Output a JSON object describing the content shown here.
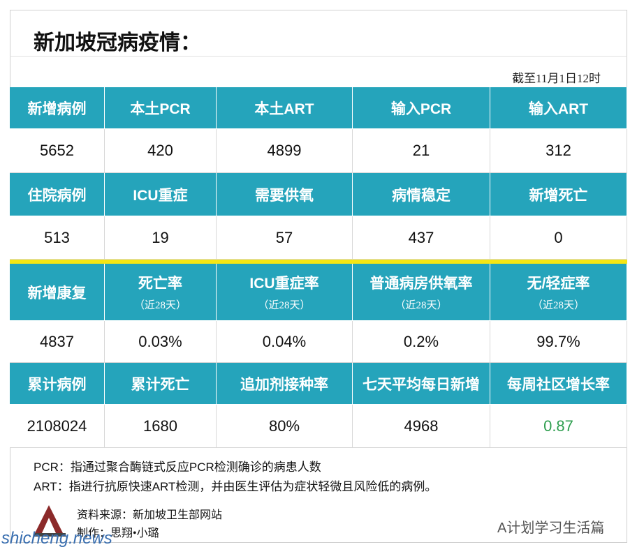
{
  "header": {
    "title": "新加坡冠病疫情：",
    "date": "截至11月1日12时"
  },
  "table": {
    "sections": [
      {
        "headers": [
          {
            "label": "新增病例"
          },
          {
            "label": "本土PCR"
          },
          {
            "label": "本土ART"
          },
          {
            "label": "输入PCR"
          },
          {
            "label": "输入ART"
          }
        ],
        "values": [
          5652,
          420,
          4899,
          21,
          312
        ]
      },
      {
        "headers": [
          {
            "label": "住院病例"
          },
          {
            "label": "ICU重症"
          },
          {
            "label": "需要供氧"
          },
          {
            "label": "病情稳定"
          },
          {
            "label": "新增死亡"
          }
        ],
        "values": [
          513,
          19,
          57,
          437,
          0
        ]
      },
      {
        "headers": [
          {
            "label": "新增康复"
          },
          {
            "label": "死亡率",
            "note": "（近28天）"
          },
          {
            "label": "ICU重症率",
            "note": "（近28天）"
          },
          {
            "label": "普通病房供氧率",
            "note": "（近28天）"
          },
          {
            "label": "无/轻症率",
            "note": "（近28天）"
          }
        ],
        "values": [
          4837,
          "0.03%",
          "0.04%",
          "0.2%",
          "99.7%"
        ]
      },
      {
        "headers": [
          {
            "label": "累计病例"
          },
          {
            "label": "累计死亡"
          },
          {
            "label": "追加剂接种率"
          },
          {
            "label": "七天平均每日新增"
          },
          {
            "label": "每周社区增长率"
          }
        ],
        "values": [
          2108024,
          1680,
          "80%",
          4968,
          0.87
        ],
        "highlight": {
          "index": 4,
          "color": "#2e9e4f"
        }
      }
    ]
  },
  "notes": [
    "PCR：指通过聚合酶链式反应PCR检测确诊的病患人数",
    "ART：指进行抗原快速ART检测，并由医生评估为症状轻微且风险低的病例。"
  ],
  "source": "资料来源：新加坡卫生部网站",
  "credit": "制作：思翔•小璐",
  "watermark": "A计划学习生活篇",
  "site": "shicheng.news"
}
